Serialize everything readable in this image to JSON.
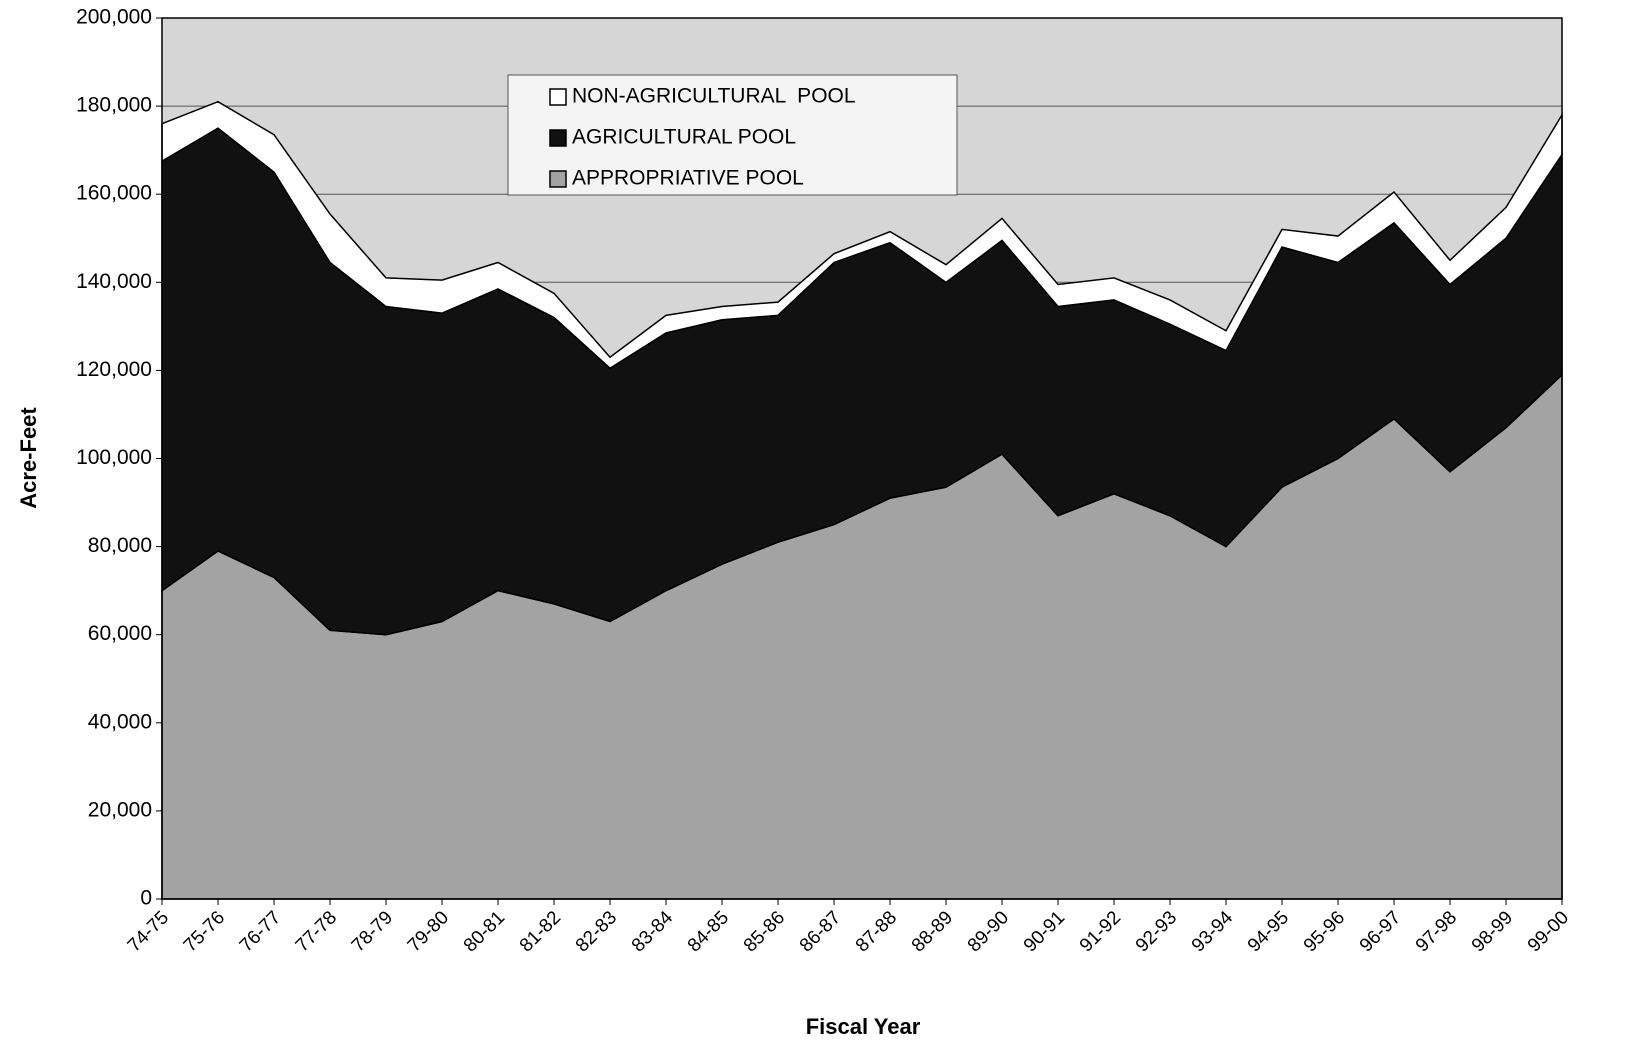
{
  "chart_data": {
    "type": "stacked-area",
    "x_label": "Fiscal Year",
    "y_label": "Acre-Feet",
    "categories": [
      "74-75",
      "75-76",
      "76-77",
      "77-78",
      "78-79",
      "79-80",
      "80-81",
      "81-82",
      "82-83",
      "83-84",
      "84-85",
      "85-86",
      "86-87",
      "87-88",
      "88-89",
      "89-90",
      "90-91",
      "91-92",
      "92-93",
      "93-94",
      "94-95",
      "95-96",
      "96-97",
      "97-98",
      "98-99",
      "99-00"
    ],
    "series": [
      {
        "name": "APPROPRIATIVE POOL",
        "color": "#a3a3a3",
        "values": [
          70000,
          79000,
          73000,
          61000,
          60000,
          63000,
          70000,
          67000,
          63000,
          70000,
          76000,
          81000,
          85000,
          91000,
          93500,
          101000,
          87000,
          92000,
          87000,
          80000,
          93500,
          100000,
          109000,
          97000,
          107000,
          119000
        ]
      },
      {
        "name": "AGRICULTURAL POOL",
        "color": "#111111",
        "values": [
          97500,
          96000,
          92000,
          83500,
          74500,
          70000,
          68500,
          65000,
          57500,
          58500,
          55500,
          51500,
          59500,
          58000,
          46500,
          48500,
          47500,
          44000,
          43500,
          44500,
          54500,
          44500,
          44500,
          42500,
          43000,
          50000
        ]
      },
      {
        "name": "NON-AGRICULTURAL  POOL",
        "color": "#ffffff",
        "values": [
          8500,
          6000,
          8500,
          11000,
          6500,
          7500,
          6000,
          5500,
          2500,
          4000,
          3000,
          3000,
          2000,
          2500,
          4000,
          5000,
          5000,
          5000,
          5500,
          4500,
          4000,
          6000,
          7000,
          5500,
          7000,
          9000
        ]
      }
    ],
    "ylim": [
      0,
      200000
    ],
    "yticks": [
      0,
      {
        "value": 20000,
        "label": "20,000"
      },
      {
        "value": 40000,
        "label": "40,000"
      },
      {
        "value": 60000,
        "label": "60,000"
      },
      {
        "value": 80000,
        "label": "80,000"
      },
      {
        "value": 100000,
        "label": "100,000"
      },
      {
        "value": 120000,
        "label": "120,000"
      },
      {
        "value": 140000,
        "label": "140,000"
      },
      {
        "value": 160000,
        "label": "160,000"
      },
      {
        "value": 180000,
        "label": "180,000"
      },
      {
        "value": 200000,
        "label": "200,000"
      }
    ],
    "grid": true,
    "legend": "top"
  }
}
